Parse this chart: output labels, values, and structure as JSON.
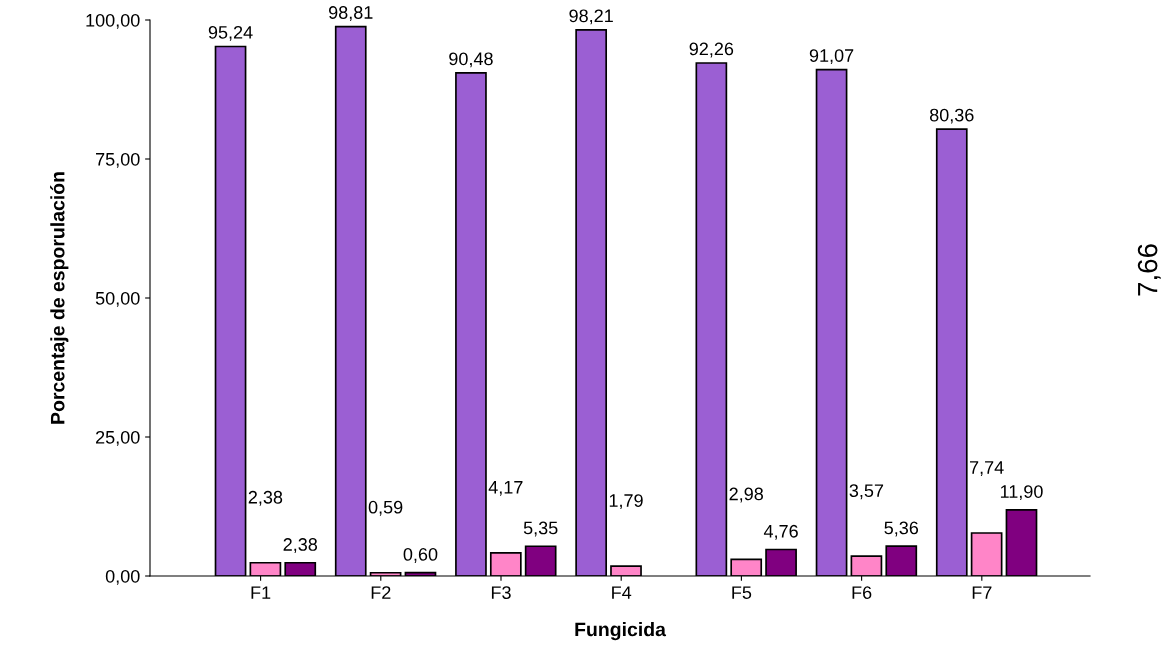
{
  "chart_data": {
    "type": "bar",
    "xlabel": "Fungicida",
    "ylabel": "Porcentaje de esporulación",
    "categories": [
      "F1",
      "F2",
      "F3",
      "F4",
      "F5",
      "F6",
      "F7"
    ],
    "series": [
      {
        "color": "#9b5fd3",
        "values": [
          95.24,
          98.81,
          90.48,
          98.21,
          92.26,
          91.07,
          80.36
        ],
        "value_labels": [
          "95,24",
          "98,81",
          "90,48",
          "98,21",
          "92,26",
          "91,07",
          "80,36"
        ]
      },
      {
        "color": "#ff85c8",
        "values": [
          2.38,
          0.59,
          4.17,
          1.79,
          2.98,
          3.57,
          7.74
        ],
        "value_labels": [
          "2,38",
          "0,59",
          "4,17",
          "1,79",
          "2,98",
          "3,57",
          "7,74"
        ]
      },
      {
        "color": "#800080",
        "values": [
          2.38,
          0.6,
          5.35,
          null,
          4.76,
          5.36,
          11.9
        ],
        "value_labels": [
          "2,38",
          "0,60",
          "5,35",
          null,
          "4,76",
          "5,36",
          "11,90"
        ]
      }
    ],
    "ylim": [
      0,
      100
    ],
    "yticks": [
      {
        "value": 0,
        "label": "0,00"
      },
      {
        "value": 25,
        "label": "25,00"
      },
      {
        "value": 50,
        "label": "50,00"
      },
      {
        "value": 75,
        "label": "75,00"
      },
      {
        "value": 100,
        "label": "100,00"
      }
    ],
    "grid": false,
    "legend": false,
    "annotations": [
      "7,66"
    ]
  }
}
